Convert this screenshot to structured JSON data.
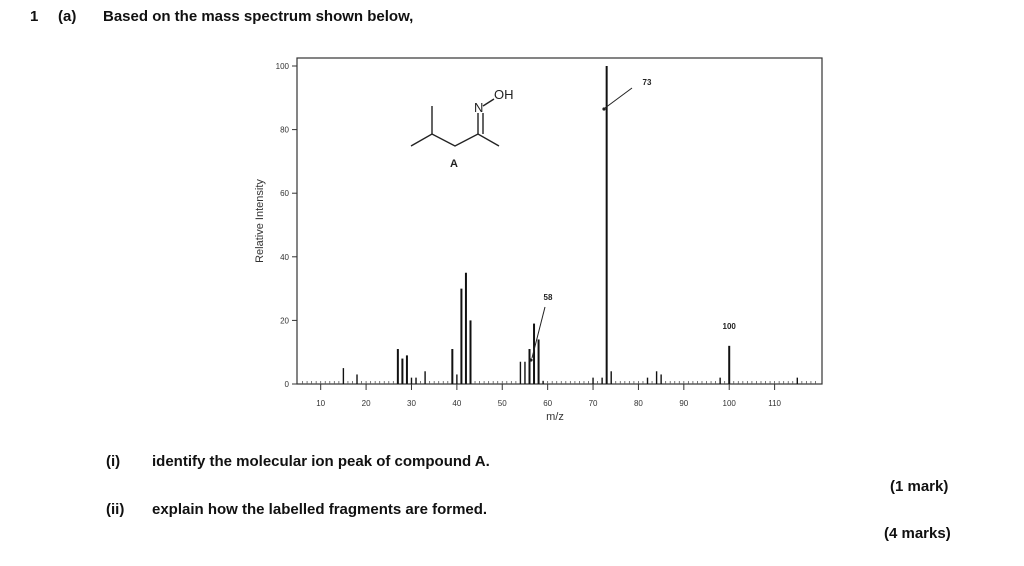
{
  "question": {
    "number": "1",
    "part": "(a)",
    "stem": "Based on the mass spectrum shown below,",
    "subparts": [
      {
        "label": "(i)",
        "text": "identify the molecular ion peak of compound A.",
        "marks": "(1 mark)"
      },
      {
        "label": "(ii)",
        "text": "explain how the labelled fragments are formed.",
        "marks": "(4 marks)"
      }
    ]
  },
  "molecule": {
    "label": "A",
    "atom_n": "N",
    "group_oh": "OH"
  },
  "chart_data": {
    "type": "bar",
    "xlabel": "m/z",
    "ylabel": "Relative Intensity",
    "xlim": [
      5,
      120
    ],
    "ylim": [
      0,
      100
    ],
    "x_ticks": [
      10,
      20,
      30,
      40,
      50,
      60,
      70,
      80,
      90,
      100,
      110
    ],
    "y_ticks": [
      0,
      20,
      40,
      60,
      80,
      100
    ],
    "grid": false,
    "peaks": [
      {
        "mz": 15,
        "intensity": 5
      },
      {
        "mz": 18,
        "intensity": 3
      },
      {
        "mz": 27,
        "intensity": 11
      },
      {
        "mz": 28,
        "intensity": 8
      },
      {
        "mz": 29,
        "intensity": 9
      },
      {
        "mz": 30,
        "intensity": 2
      },
      {
        "mz": 31,
        "intensity": 2
      },
      {
        "mz": 33,
        "intensity": 4
      },
      {
        "mz": 39,
        "intensity": 11
      },
      {
        "mz": 40,
        "intensity": 3
      },
      {
        "mz": 41,
        "intensity": 30
      },
      {
        "mz": 42,
        "intensity": 35
      },
      {
        "mz": 43,
        "intensity": 20
      },
      {
        "mz": 54,
        "intensity": 7
      },
      {
        "mz": 55,
        "intensity": 7
      },
      {
        "mz": 56,
        "intensity": 11
      },
      {
        "mz": 57,
        "intensity": 19
      },
      {
        "mz": 58,
        "intensity": 14
      },
      {
        "mz": 59,
        "intensity": 1
      },
      {
        "mz": 70,
        "intensity": 2
      },
      {
        "mz": 72,
        "intensity": 2
      },
      {
        "mz": 73,
        "intensity": 100
      },
      {
        "mz": 74,
        "intensity": 4
      },
      {
        "mz": 82,
        "intensity": 2
      },
      {
        "mz": 84,
        "intensity": 4
      },
      {
        "mz": 85,
        "intensity": 3
      },
      {
        "mz": 98,
        "intensity": 2
      },
      {
        "mz": 100,
        "intensity": 12
      },
      {
        "mz": 115,
        "intensity": 2
      }
    ],
    "labels": [
      {
        "mz": 73,
        "text": "73"
      },
      {
        "mz": 58,
        "text": "58"
      },
      {
        "mz": 100,
        "text": "100"
      }
    ]
  }
}
